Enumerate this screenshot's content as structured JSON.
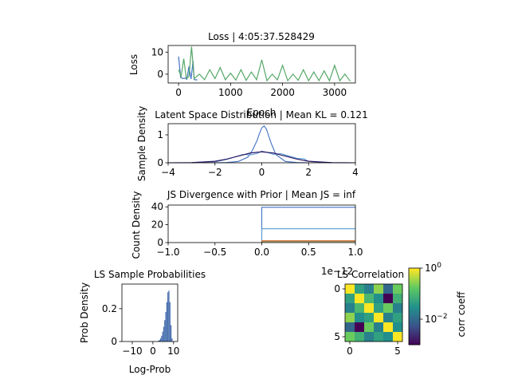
{
  "chart_data": [
    {
      "type": "line",
      "title": "Loss | 4:05:37.528429",
      "xlabel": "Epoch",
      "ylabel": "Loss",
      "xlim": [
        -200,
        3400
      ],
      "ylim": [
        -4,
        13
      ],
      "xticks": [
        0,
        1000,
        2000,
        3000
      ],
      "yticks": [
        0,
        10
      ],
      "series": [
        {
          "color": "#4472c4",
          "x": [
            0,
            40,
            80,
            120,
            160,
            200,
            240,
            280,
            300,
            320,
            360
          ],
          "y": [
            8,
            -1.5,
            -2,
            -1.8,
            -2.3,
            3.5,
            -2.2,
            6,
            -2.4,
            -2.5,
            -2.6
          ]
        },
        {
          "color": "#55a868",
          "x": [
            0,
            50,
            100,
            150,
            200,
            250,
            300,
            400,
            500,
            600,
            700,
            800,
            900,
            1000,
            1100,
            1200,
            1300,
            1400,
            1500,
            1600,
            1700,
            1800,
            1900,
            2000,
            2100,
            2200,
            2300,
            2400,
            2500,
            2600,
            2700,
            2800,
            2900,
            3000,
            3100,
            3200,
            3300
          ],
          "y": [
            2,
            -1,
            7,
            -2,
            -1,
            12.5,
            -2,
            0,
            -2.5,
            2,
            -2,
            3,
            -2.5,
            0.5,
            -2.7,
            2,
            -2.8,
            1,
            -2.5,
            6.5,
            -3,
            0,
            -2.6,
            4,
            -3,
            0,
            -2.8,
            2,
            -3,
            1,
            -2.9,
            1.5,
            -3,
            4,
            -3,
            0,
            -3.2
          ]
        }
      ]
    },
    {
      "type": "line",
      "title": "Latent Space Distribution | Mean KL = 0.121",
      "xlabel": "",
      "ylabel": "Sample Density",
      "xlim": [
        -4,
        4
      ],
      "ylim": [
        0,
        1.4
      ],
      "xticks": [
        -4,
        -2,
        0,
        2,
        4
      ],
      "yticks": [
        0,
        1
      ],
      "series": [
        {
          "color": "#4472c4",
          "x": [
            -2.0,
            -1.5,
            -1.0,
            -0.6,
            -0.4,
            -0.2,
            -0.1,
            0.0,
            0.1,
            0.2,
            0.3,
            0.4,
            0.6,
            1.0,
            1.5,
            2.0
          ],
          "y": [
            0.0,
            0.01,
            0.05,
            0.2,
            0.45,
            0.8,
            1.05,
            1.25,
            1.32,
            1.2,
            0.95,
            0.7,
            0.3,
            0.05,
            0.01,
            0.0
          ]
        },
        {
          "color": "#5b9bd5",
          "x": [
            -2.5,
            -2.0,
            -1.5,
            -1.0,
            -0.8,
            -0.5,
            -0.2,
            0.0,
            0.2,
            0.5,
            0.8,
            1.0,
            1.5,
            1.8,
            2.0,
            2.5
          ],
          "y": [
            0.0,
            0.03,
            0.12,
            0.25,
            0.3,
            0.28,
            0.33,
            0.42,
            0.38,
            0.3,
            0.33,
            0.28,
            0.16,
            0.14,
            0.05,
            0.01
          ]
        },
        {
          "color": "#e06060",
          "x": [
            -4,
            -3,
            -2,
            -1.5,
            -1,
            -0.5,
            0,
            0.5,
            1,
            1.5,
            2,
            3,
            4
          ],
          "y": [
            0.0,
            0.004,
            0.05,
            0.13,
            0.24,
            0.35,
            0.4,
            0.35,
            0.24,
            0.13,
            0.05,
            0.004,
            0.0
          ]
        },
        {
          "color": "#1a1a6e",
          "x": [
            -4,
            -3,
            -2,
            -1.5,
            -1,
            -0.5,
            0,
            0.5,
            1,
            1.5,
            2,
            3,
            4
          ],
          "y": [
            0.0,
            0.005,
            0.055,
            0.13,
            0.24,
            0.35,
            0.39,
            0.35,
            0.24,
            0.13,
            0.055,
            0.005,
            0.0
          ]
        }
      ]
    },
    {
      "type": "line",
      "title": "JS Divergence with Prior | Mean JS = inf",
      "xlabel": "",
      "ylabel": "Count Density",
      "offset_text": "1e−12",
      "xlim": [
        -1,
        1
      ],
      "ylim": [
        0,
        42
      ],
      "xticks": [
        "−1.0",
        "−0.5",
        "0.0",
        "0.5",
        "1.0"
      ],
      "yticks": [
        0,
        20,
        40
      ],
      "series": [
        {
          "color": "#4472c4",
          "x": [
            0,
            0,
            1
          ],
          "y": [
            0,
            39.5,
            39.5
          ]
        },
        {
          "color": "#5b9bd5",
          "x": [
            0,
            0,
            1
          ],
          "y": [
            0,
            15.5,
            15.5
          ]
        },
        {
          "color": "#dd8452",
          "x": [
            0,
            0,
            1
          ],
          "y": [
            0,
            2.2,
            2.2
          ]
        },
        {
          "color": "#8c6d31",
          "x": [
            0,
            0,
            1
          ],
          "y": [
            0,
            1.2,
            1.2
          ]
        }
      ]
    },
    {
      "type": "bar",
      "title": "LS Sample Probabilities",
      "xlabel": "Log-Prob",
      "ylabel": "Prob Density",
      "xlim": [
        -15,
        12
      ],
      "ylim": [
        0,
        0.35
      ],
      "xticks": [
        -10,
        0,
        10
      ],
      "yticks": [
        0,
        0.2
      ],
      "bins": [
        2.5,
        3.0,
        3.5,
        4.0,
        4.5,
        5.0,
        5.5,
        6.0,
        6.5,
        7.0,
        7.5,
        8.0,
        8.5,
        9.0
      ],
      "values": [
        0.005,
        0.01,
        0.02,
        0.035,
        0.06,
        0.09,
        0.13,
        0.18,
        0.24,
        0.3,
        0.31,
        0.24,
        0.1,
        0.02
      ],
      "color": "#4c72b0"
    },
    {
      "type": "heatmap",
      "title": "LS Correlation",
      "xticks": [
        0,
        5
      ],
      "yticks": [
        0,
        5
      ],
      "colorbar_label": "corr coeff",
      "colorbar_ticks": [
        "10^0",
        "10^-2"
      ],
      "matrix": [
        [
          1.0,
          0.05,
          0.02,
          0.3,
          0.01,
          0.2
        ],
        [
          0.05,
          1.0,
          0.1,
          0.03,
          0.001,
          0.08
        ],
        [
          0.02,
          0.1,
          1.0,
          0.05,
          0.2,
          0.02
        ],
        [
          0.3,
          0.03,
          0.05,
          1.0,
          0.02,
          0.05
        ],
        [
          0.01,
          0.001,
          0.2,
          0.02,
          1.0,
          0.03
        ],
        [
          0.2,
          0.08,
          0.02,
          0.05,
          0.03,
          1.0
        ]
      ]
    }
  ]
}
